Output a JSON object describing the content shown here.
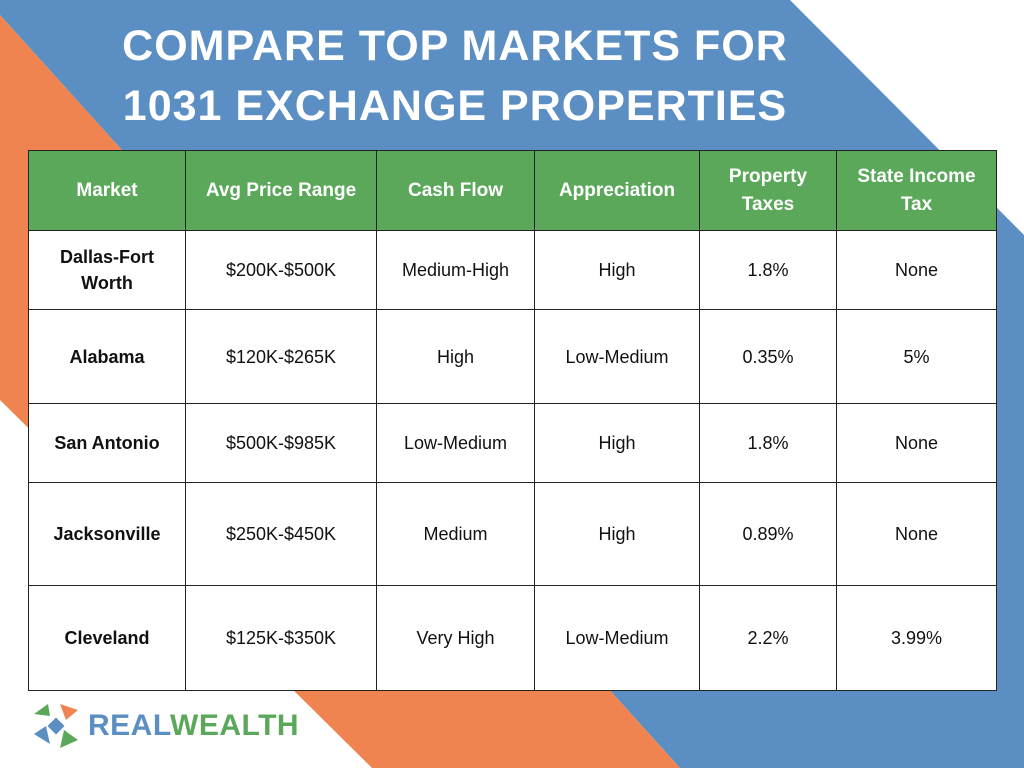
{
  "header": {
    "title_lines": [
      "COMPARE TOP MARKETS FOR",
      "1031 EXCHANGE PROPERTIES"
    ]
  },
  "table": {
    "columns": [
      "Market",
      "Avg Price Range",
      "Cash Flow",
      "Appreciation",
      "Property Taxes",
      "State Income Tax"
    ],
    "rows": [
      [
        "Dallas-Fort Worth",
        "$200K-$500K",
        "Medium-High",
        "High",
        "1.8%",
        "None"
      ],
      [
        "Alabama",
        "$120K-$265K",
        "High",
        "Low-Medium",
        "0.35%",
        "5%"
      ],
      [
        "San Antonio",
        "$500K-$985K",
        "Low-Medium",
        "High",
        "1.8%",
        "None"
      ],
      [
        "Jacksonville",
        "$250K-$450K",
        "Medium",
        "High",
        "0.89%",
        "None"
      ],
      [
        "Cleveland",
        "$125K-$350K",
        "Very High",
        "Low-Medium",
        "2.2%",
        "3.99%"
      ]
    ]
  },
  "logo": {
    "part1": "REAL",
    "part2": "WEALTH"
  }
}
